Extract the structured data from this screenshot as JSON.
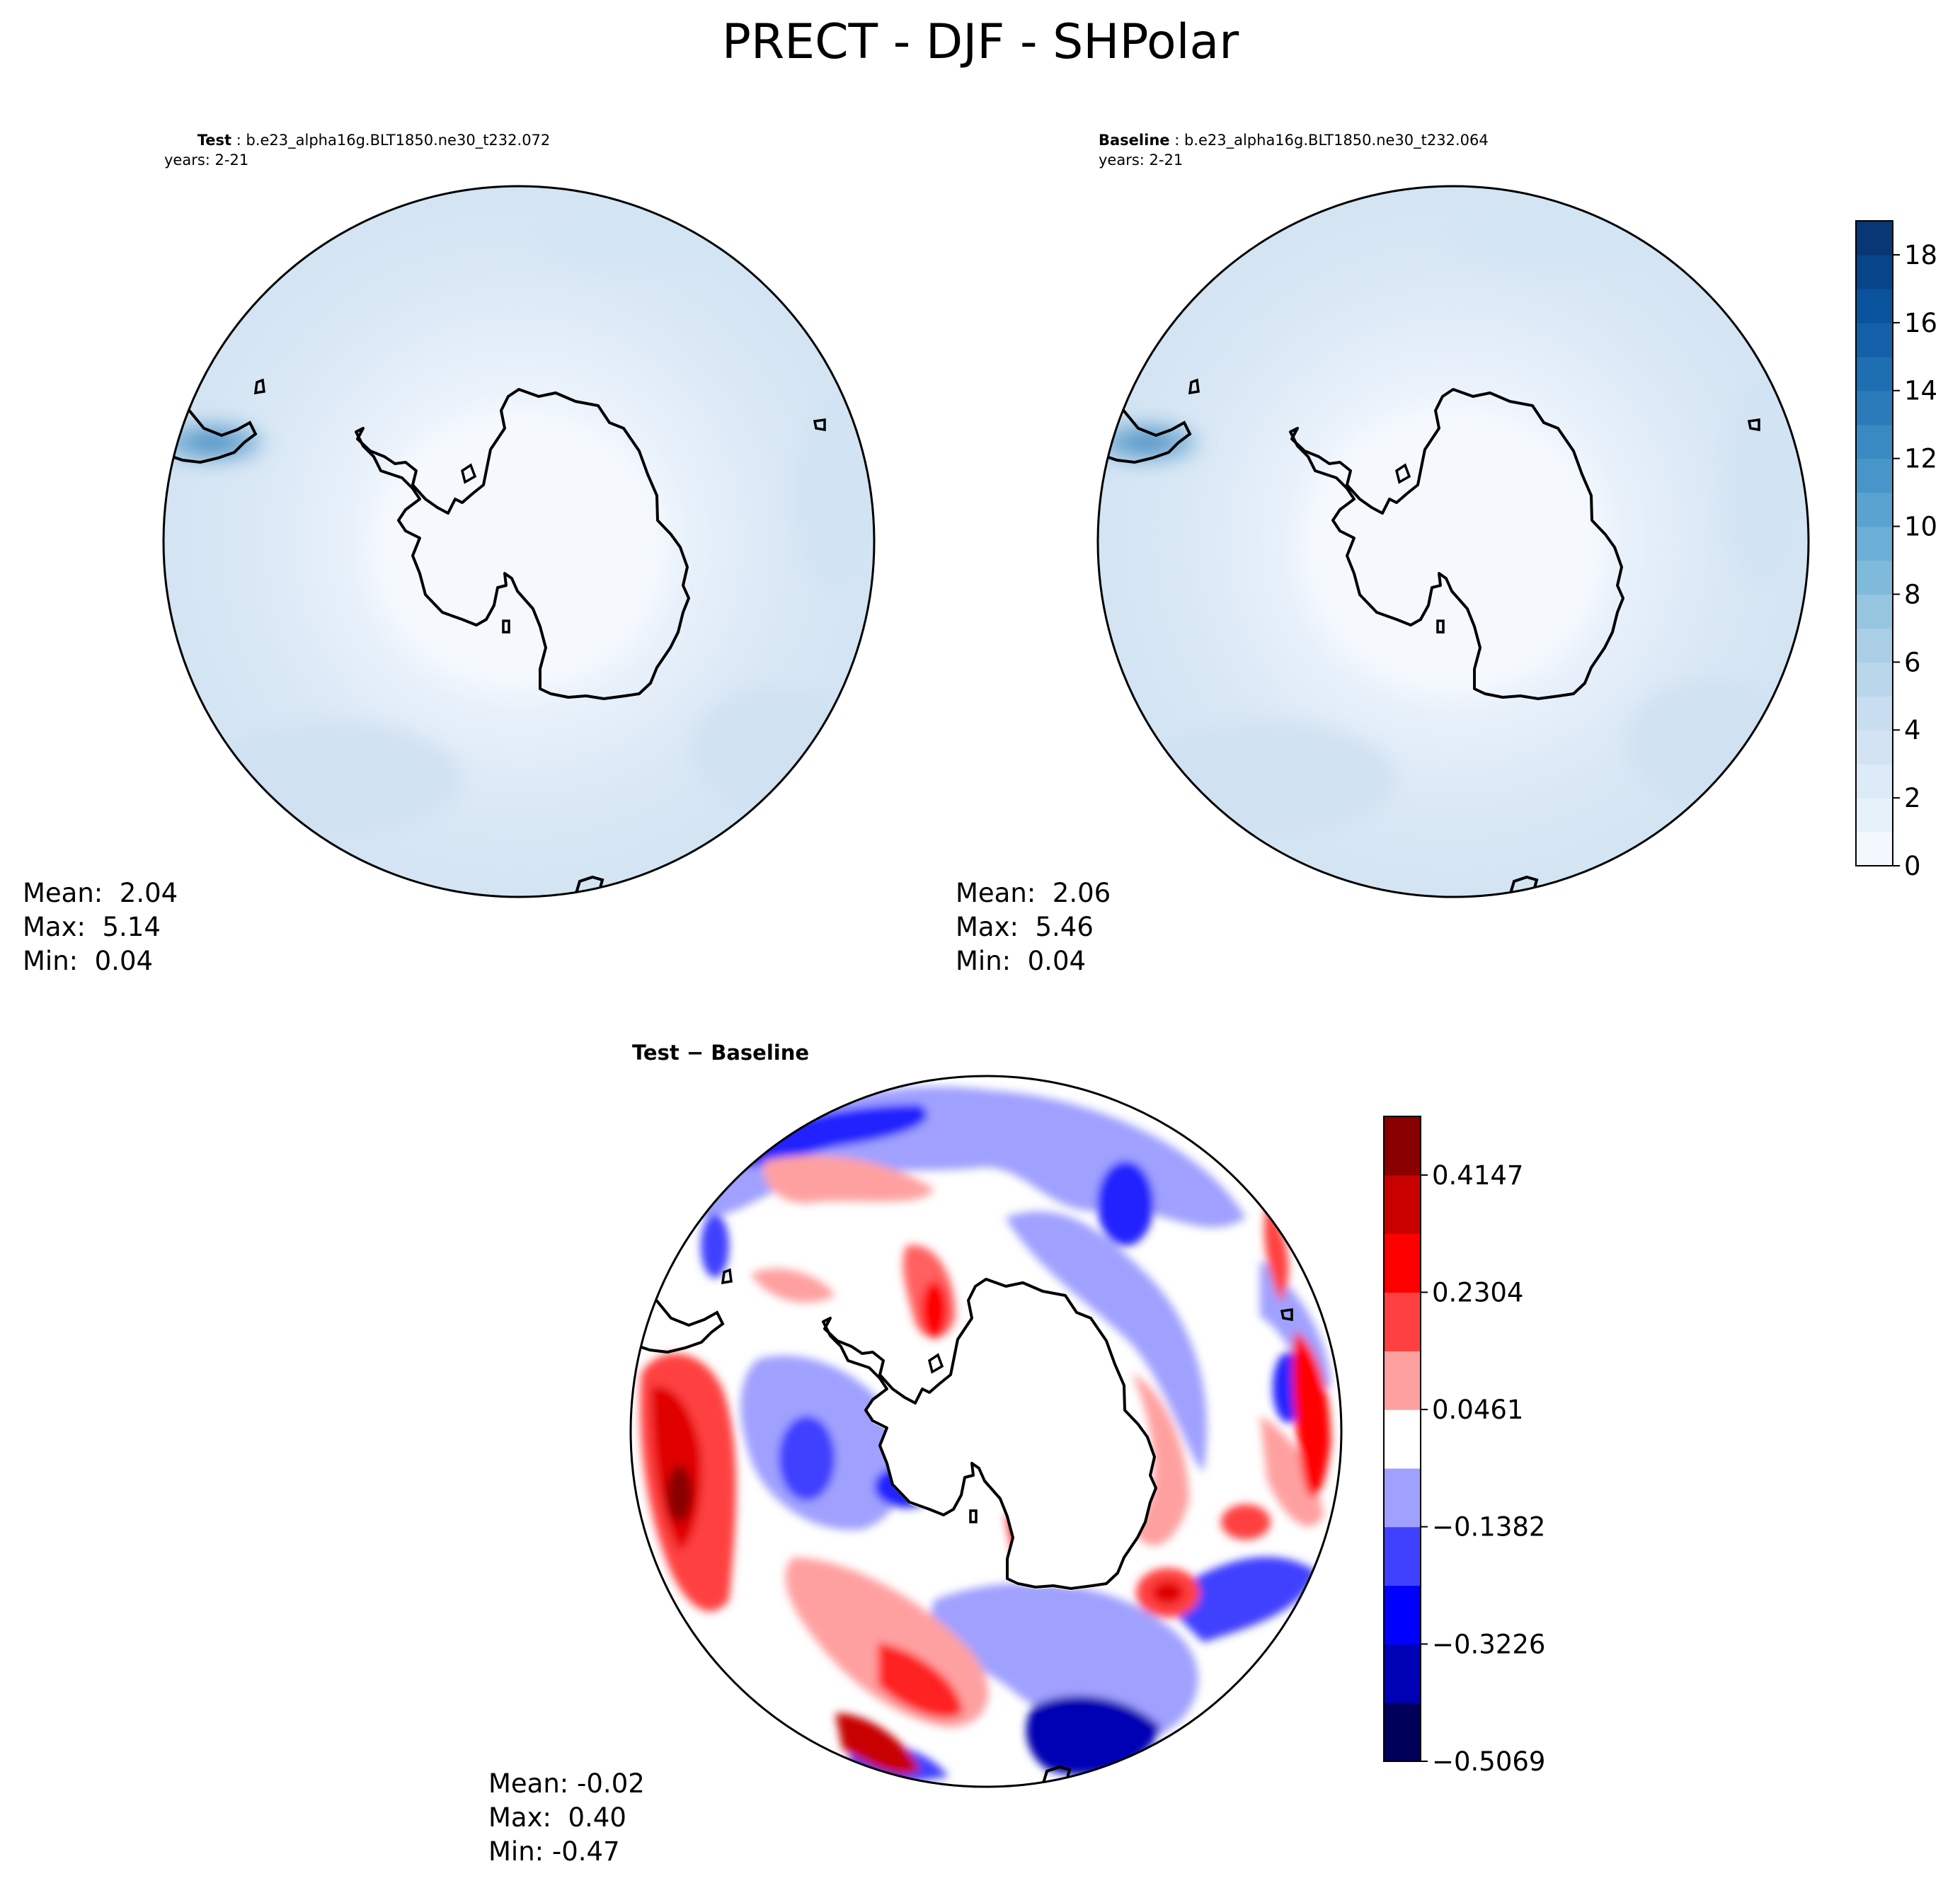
{
  "title": "PRECT - DJF - SHPolar",
  "panels": {
    "test": {
      "label": "Test",
      "case": "b.e23_alpha16g.BLT1850.ne30_t232.072",
      "years": "years: 2-21",
      "stats": {
        "mean": "Mean:  2.04",
        "max": "Max:  5.14",
        "min": "Min:  0.04"
      }
    },
    "baseline": {
      "label": "Baseline",
      "case": "b.e23_alpha16g.BLT1850.ne30_t232.064",
      "years": "years: 2-21",
      "stats": {
        "mean": "Mean:  2.06",
        "max": "Max:  5.46",
        "min": "Min:  0.04"
      }
    },
    "diff": {
      "label": "Test − Baseline",
      "stats": {
        "mean": "Mean: -0.02",
        "max": "Max:  0.40",
        "min": "Min: -0.47"
      }
    }
  },
  "chart_data": [
    {
      "type": "heatmap",
      "projection": "south-polar-stereographic",
      "title": "Test : b.e23_alpha16g.BLT1850.ne30_t232.072",
      "mean": 2.04,
      "max": 5.14,
      "min": 0.04,
      "colorbar": "shared-with-baseline"
    },
    {
      "type": "heatmap",
      "projection": "south-polar-stereographic",
      "title": "Baseline : b.e23_alpha16g.BLT1850.ne30_t232.064",
      "mean": 2.06,
      "max": 5.46,
      "min": 0.04,
      "colorbar": {
        "range": [
          0,
          19
        ],
        "ticks": [
          "0",
          "2",
          "4",
          "6",
          "8",
          "10",
          "12",
          "14",
          "16",
          "18"
        ],
        "levels": 19,
        "colormap": "Blues"
      }
    },
    {
      "type": "heatmap",
      "projection": "south-polar-stereographic",
      "title": "Test − Baseline",
      "mean": -0.02,
      "max": 0.4,
      "min": -0.47,
      "colorbar": {
        "range": [
          -0.5069,
          0.5069
        ],
        "ticks": [
          "−0.5069",
          "−0.3226",
          "−0.1382",
          "0.0461",
          "0.2304",
          "0.4147"
        ],
        "colors": [
          "#00005a",
          "#0000b4",
          "#0000ff",
          "#4040ff",
          "#a0a0ff",
          "#ffffff",
          "#ffa0a0",
          "#ff4040",
          "#ff0000",
          "#c80000",
          "#8a0000"
        ],
        "colormap": "seismic"
      }
    }
  ]
}
